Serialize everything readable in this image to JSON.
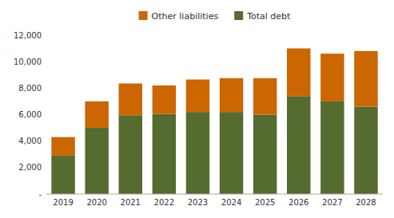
{
  "chart_data": {
    "type": "bar",
    "stacked": true,
    "grid": false,
    "legend": "top",
    "categories": [
      "2019",
      "2020",
      "2021",
      "2022",
      "2023",
      "2024",
      "2025",
      "2026",
      "2027",
      "2028"
    ],
    "series": [
      {
        "name": "Total debt",
        "color": "#556B2F",
        "values": [
          2900,
          5000,
          5950,
          6050,
          6200,
          6200,
          6000,
          7400,
          7000,
          6600
        ]
      },
      {
        "name": "Other liabilities",
        "color": "#CC6600",
        "values": [
          1400,
          2000,
          2400,
          2150,
          2450,
          2550,
          2750,
          3600,
          3600,
          4200
        ]
      }
    ],
    "ylim": [
      0,
      12000
    ],
    "yticks": [
      {
        "value": 0,
        "label": "-"
      },
      {
        "value": 2000,
        "label": "2,000"
      },
      {
        "value": 4000,
        "label": "4,000"
      },
      {
        "value": 6000,
        "label": "6,000"
      },
      {
        "value": 8000,
        "label": "8,000"
      },
      {
        "value": 10000,
        "label": "10,000"
      },
      {
        "value": 12000,
        "label": "12,000"
      }
    ]
  }
}
